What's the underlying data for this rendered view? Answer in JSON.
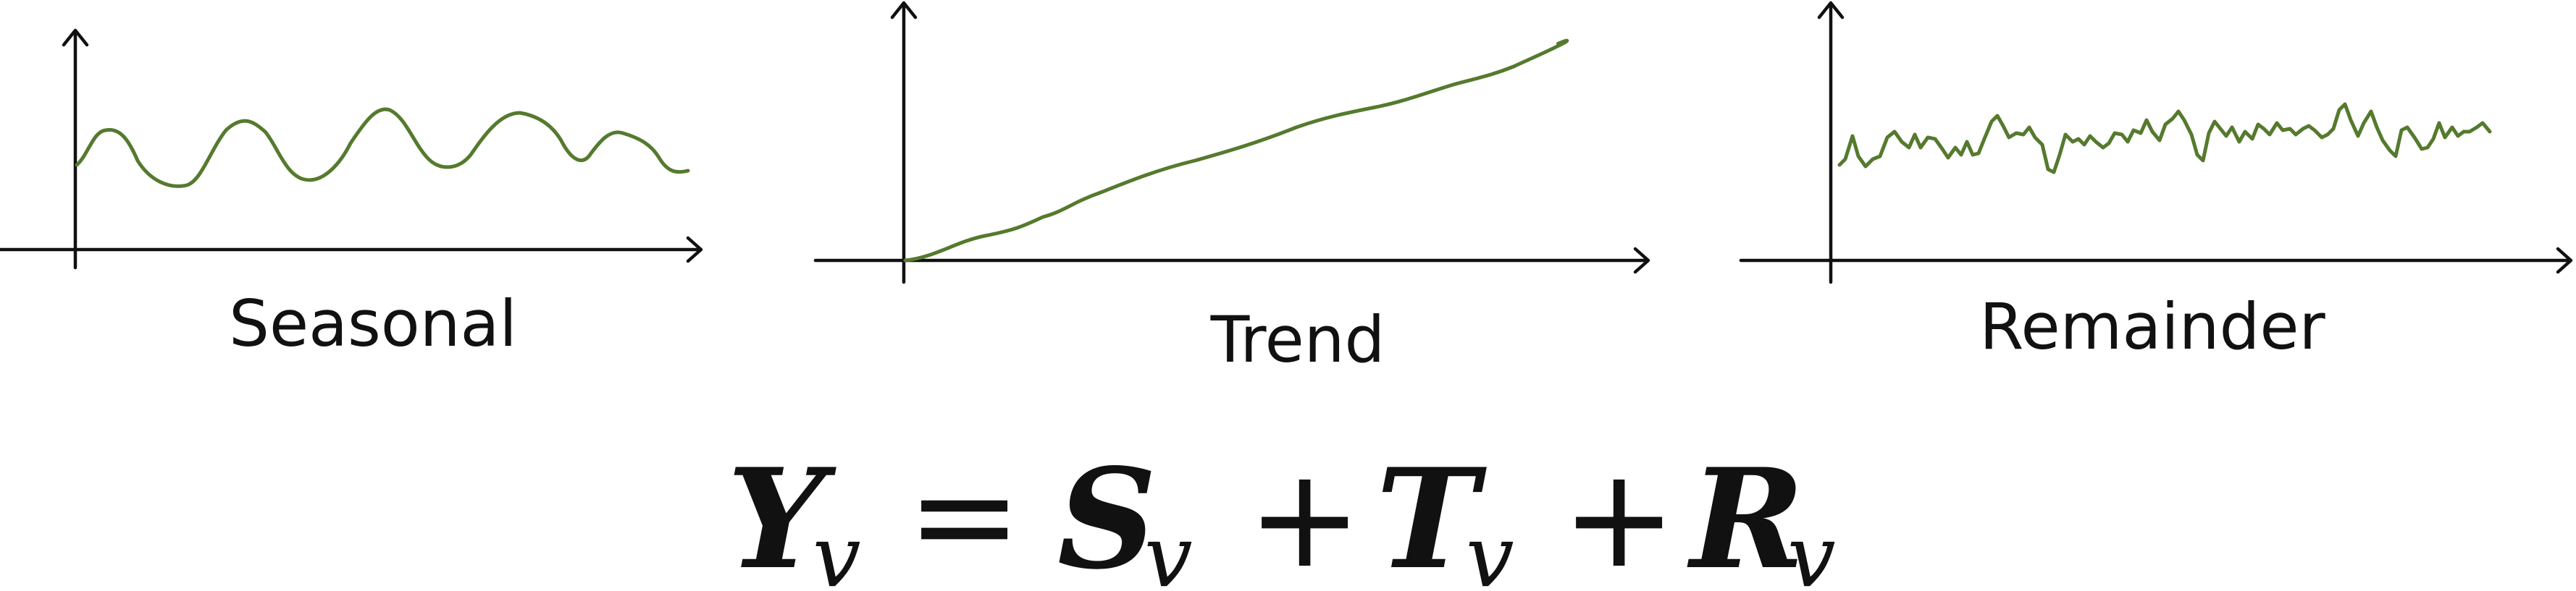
{
  "colors": {
    "curve": "#557a2e",
    "axis": "#111111",
    "text": "#111111",
    "background": "#ffffff"
  },
  "panels": [
    {
      "id": "seasonal",
      "label": "Seasonal"
    },
    {
      "id": "trend",
      "label": "Trend"
    },
    {
      "id": "remainder",
      "label": "Remainder"
    }
  ],
  "equation": {
    "lhs": {
      "symbol": "Y",
      "sub": "v"
    },
    "equals": "=",
    "terms": [
      {
        "symbol": "S",
        "sub": "v"
      },
      {
        "symbol": "T",
        "sub": "v"
      },
      {
        "symbol": "R",
        "sub": "v"
      }
    ],
    "plus": "+"
  }
}
